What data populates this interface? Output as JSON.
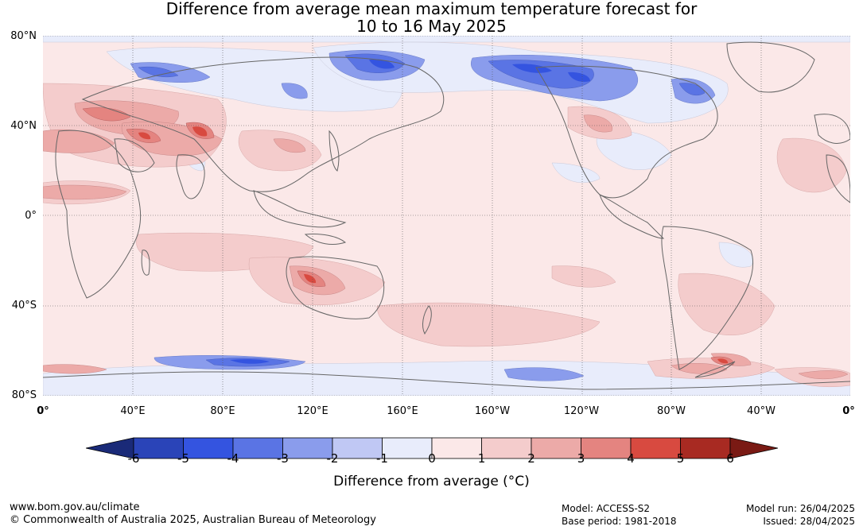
{
  "title_line1": "Difference from average mean maximum temperature forecast for",
  "title_line2": "10 to 16 May 2025",
  "lat_labels": [
    "80°N",
    "40°N",
    "0°",
    "40°S",
    "80°S"
  ],
  "lon_labels": [
    "0°",
    "40°E",
    "80°E",
    "120°E",
    "160°E",
    "160°W",
    "120°W",
    "80°W",
    "40°W",
    "0°"
  ],
  "colorbar": {
    "ticks": [
      "-6",
      "-5",
      "-4",
      "-3",
      "-2",
      "-1",
      "0",
      "1",
      "2",
      "3",
      "4",
      "5",
      "6"
    ],
    "colors": [
      "#1a2a78",
      "#2a44b8",
      "#3454e0",
      "#5a74e4",
      "#8a9cec",
      "#c0c8f4",
      "#e8ecfb",
      "#fbe8e8",
      "#f4cccc",
      "#ecaaa8",
      "#e48480",
      "#d84a40",
      "#a82a22",
      "#7a1a14"
    ],
    "title": "Difference from average (°C)"
  },
  "colors": {
    "ocean_base": "#fbe8e8",
    "land_outline": "#666666",
    "grid": "#555555"
  },
  "footer": {
    "website": "www.bom.gov.au/climate",
    "copyright": "© Commonwealth of Australia 2025, Australian Bureau of Meteorology",
    "model": "Model: ACCESS-S2",
    "base_period": "Base period: 1981-2018",
    "model_run": "Model run: 26/04/2025",
    "issued": "Issued: 28/04/2025"
  }
}
